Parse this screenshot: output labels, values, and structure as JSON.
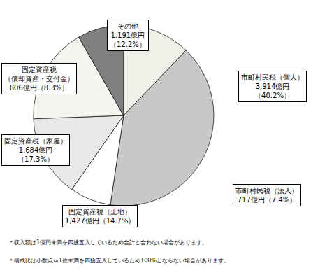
{
  "chart_data": {
    "type": "pie",
    "values": [
      12.2,
      40.2,
      7.4,
      14.7,
      17.3,
      8.3
    ],
    "colors": [
      "#f0f0e8",
      "#c8c8c8",
      "#ffffff",
      "#e8e8e8",
      "#f5f5f0",
      "#808080"
    ],
    "annotations": [
      "その他\n1,191億円\n（12.2%）",
      "市町村民税（個人）\n3,914億円\n（40.2%）",
      "市町村民税（法人）\n717億円（7.4%）",
      "固定資産税（土地）\n1,427億円（14.7%）",
      "固定資産税（家屋）\n1,684億円\n（17.3%）",
      "固定資産税\n（償却資産・交付金）\n806億円（8.3%）",
      "＊収入額は1億円未満を四捨五入しているため合計と合わない場合があります。",
      "＊構成比は小数点ㅨ1位未満を四捨五入しているため100%とならない場合があります。"
    ]
  }
}
